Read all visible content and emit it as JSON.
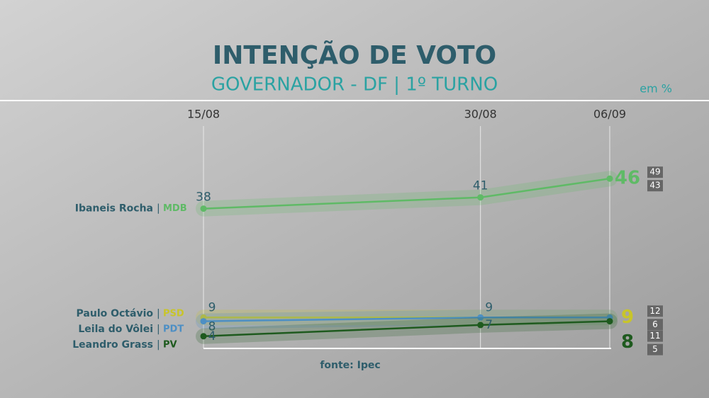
{
  "chart_data": {
    "type": "line",
    "title": "INTENÇÃO DE VOTO",
    "subtitle": "GOVERNADOR - DF | 1º TURNO",
    "unit_note": "em %",
    "source": "fonte: Ipec",
    "x": [
      "15/08",
      "30/08",
      "06/09"
    ],
    "ylim": [
      0,
      50
    ],
    "series": [
      {
        "name": "Ibaneis Rocha",
        "party": "MDB",
        "color": "#5fba66",
        "values": [
          38,
          41,
          46
        ],
        "value_labels": [
          "38",
          "41",
          "46"
        ],
        "range": [
          49,
          43
        ]
      },
      {
        "name": "Paulo Octávio",
        "party": "PSD",
        "color": "#c8c52a",
        "values": [
          9,
          9,
          9
        ],
        "value_labels": [
          "9",
          "9",
          "9"
        ],
        "range": [
          12,
          6
        ]
      },
      {
        "name": "Leila do Vôlei",
        "party": "PDT",
        "color": "#4d8fc4",
        "values": [
          8,
          9,
          9
        ],
        "value_labels": [
          "8",
          null,
          null
        ]
      },
      {
        "name": "Leandro Grass",
        "party": "PV",
        "color": "#1e5a1e",
        "values": [
          4,
          7,
          8
        ],
        "value_labels": [
          "4",
          "7",
          "8"
        ],
        "range": [
          11,
          5
        ]
      }
    ]
  }
}
